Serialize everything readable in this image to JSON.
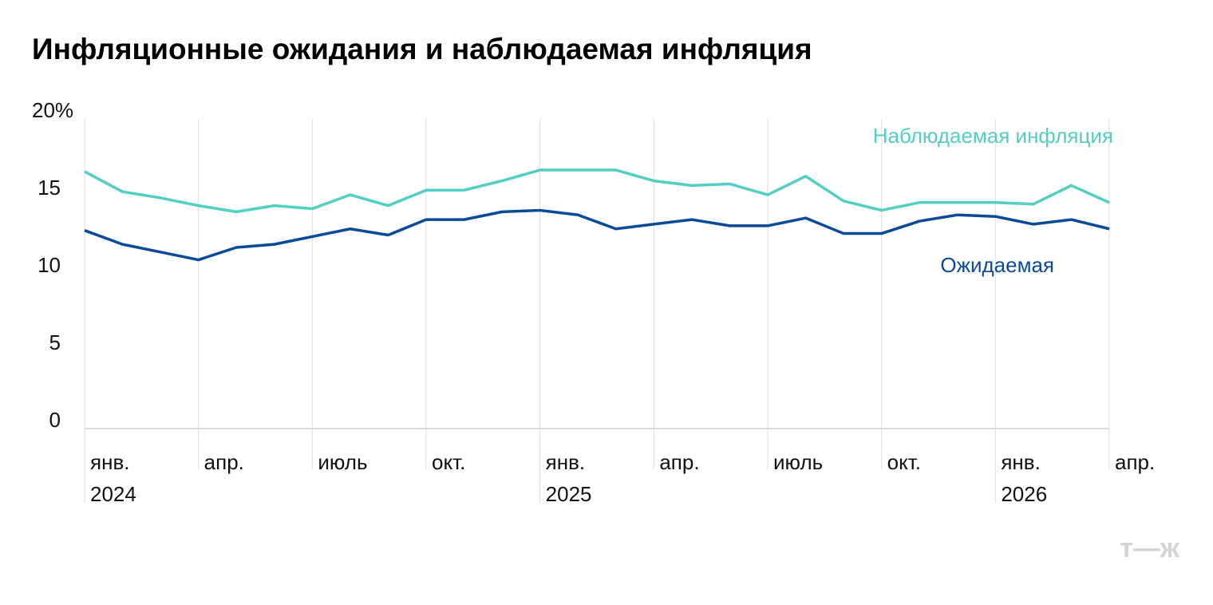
{
  "chart_data": {
    "type": "line",
    "title": "Инфляционные ожидания и наблюдаемая инфляция",
    "categories": [
      "янв.\n2024",
      null,
      null,
      "апр.",
      null,
      null,
      "июль",
      null,
      null,
      "окт.",
      null,
      null,
      "янв.\n2025",
      null,
      null,
      "апр.",
      null,
      null,
      "июль",
      null,
      null,
      "окт.",
      null,
      null,
      "янв.\n2026",
      null,
      null,
      "апр."
    ],
    "series": [
      {
        "name": "Наблюдаемая инфляция",
        "color": "#52cec3",
        "values": [
          16.6,
          15.3,
          14.9,
          14.4,
          14.0,
          14.4,
          14.2,
          15.1,
          14.4,
          15.4,
          15.4,
          16.0,
          16.7,
          16.7,
          16.7,
          16.0,
          15.7,
          15.8,
          15.1,
          16.3,
          14.7,
          14.1,
          14.6,
          14.6,
          14.6,
          14.5,
          15.7,
          14.6
        ]
      },
      {
        "name": "Ожидаемая",
        "color": "#0b4a97",
        "values": [
          12.8,
          11.9,
          11.4,
          10.9,
          11.7,
          11.9,
          12.4,
          12.9,
          12.5,
          13.5,
          13.5,
          14.0,
          14.1,
          13.8,
          12.9,
          13.2,
          13.5,
          13.1,
          13.1,
          13.6,
          12.6,
          12.6,
          13.4,
          13.8,
          13.7,
          13.2,
          13.5,
          12.9
        ]
      }
    ],
    "ylim": [
      0,
      20
    ],
    "yticks": [
      0,
      5,
      10,
      15,
      {
        "value": 20,
        "label": "20%"
      }
    ],
    "logo": "т—ж"
  }
}
